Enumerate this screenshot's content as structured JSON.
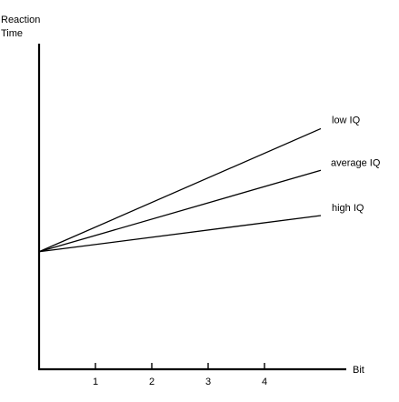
{
  "chart_data": {
    "type": "line",
    "title": "",
    "ylabel": [
      "Reaction",
      "Time"
    ],
    "xlabel": "Bit",
    "xticks": [
      1,
      2,
      3,
      4
    ],
    "xlim": [
      0,
      5
    ],
    "ylim": [
      0,
      1
    ],
    "grid": false,
    "legend": "inline",
    "series": [
      {
        "name": "low IQ",
        "x": [
          0,
          5
        ],
        "y": [
          0.361,
          0.739
        ]
      },
      {
        "name": "average IQ",
        "x": [
          0,
          5
        ],
        "y": [
          0.361,
          0.611
        ]
      },
      {
        "name": "high IQ",
        "x": [
          0,
          5
        ],
        "y": [
          0.361,
          0.472
        ]
      }
    ]
  }
}
